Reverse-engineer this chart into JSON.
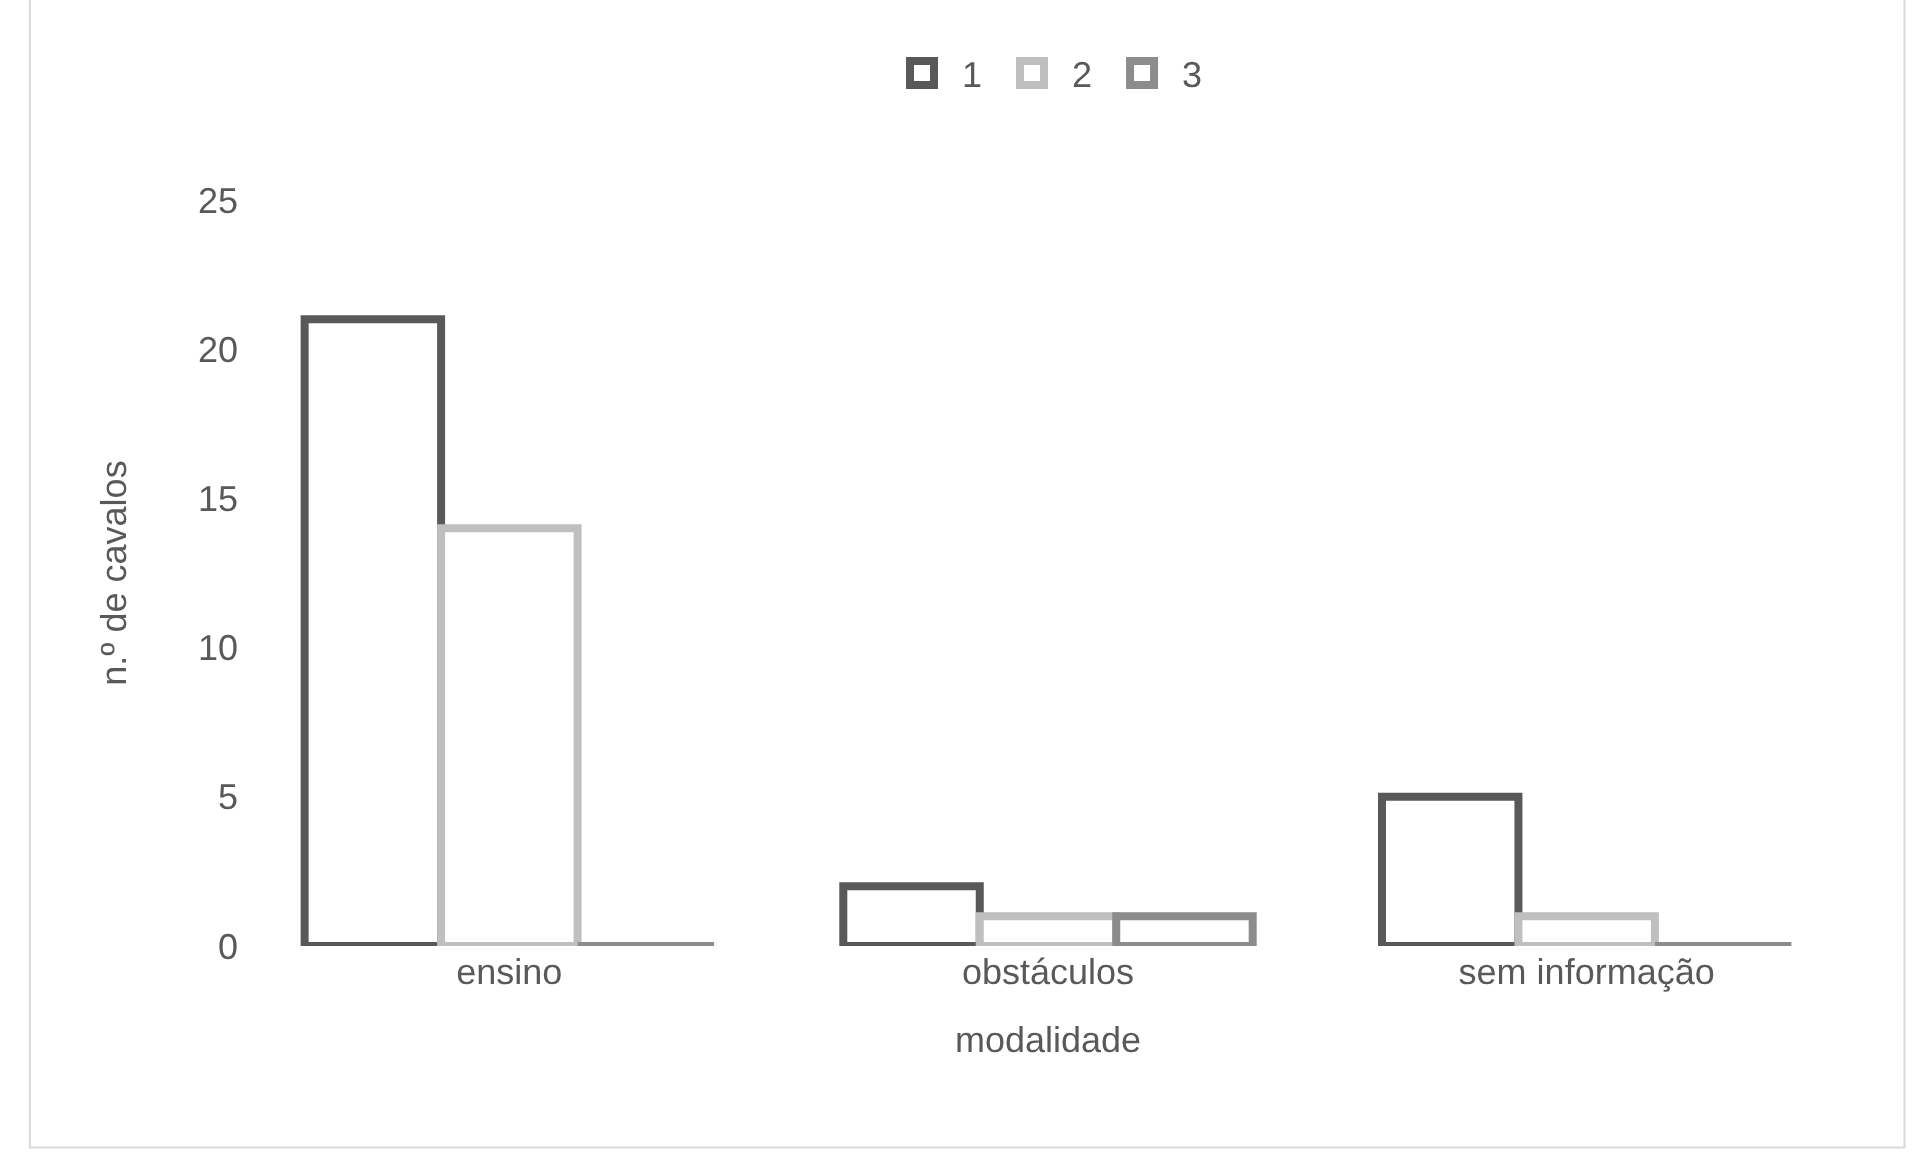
{
  "chart_data": {
    "type": "bar",
    "xlabel": "modalidade",
    "ylabel": "n.º de cavalos",
    "categories": [
      "ensino",
      "obstáculos",
      "sem informação"
    ],
    "series": [
      {
        "name": "1",
        "color": "#595959",
        "values": [
          21,
          2,
          5
        ]
      },
      {
        "name": "2",
        "color": "#bfbfbf",
        "values": [
          14,
          1,
          1
        ]
      },
      {
        "name": "3",
        "color": "#8c8c8c",
        "values": [
          0,
          1,
          0
        ]
      }
    ],
    "ylim": [
      0,
      25
    ],
    "yticks": [
      0,
      5,
      10,
      15,
      20,
      25
    ],
    "grid": false,
    "legend": "top"
  }
}
